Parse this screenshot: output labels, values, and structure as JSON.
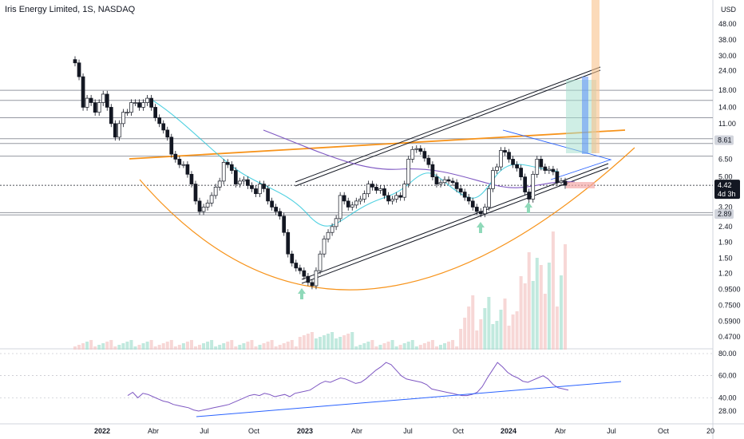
{
  "header": {
    "title": "Iris Energy Limited, 1S, NASDAQ",
    "currency": "USD"
  },
  "chart_data": {
    "type": "candlestick",
    "title": "Iris Energy Limited, 1S, NASDAQ",
    "price_axis": {
      "scale": "log",
      "range": [
        0.42,
        62
      ],
      "ticks": [
        "48.00",
        "38.00",
        "30.00",
        "24.00",
        "18.00",
        "14.00",
        "11.00",
        "8.61",
        "6.50",
        "5.00",
        "4.42",
        "3.20",
        "2.89",
        "2.40",
        "1.90",
        "1.50",
        "1.20",
        "0.9500",
        "0.7500",
        "0.5900",
        "0.4700"
      ],
      "last_price": "4.42",
      "countdown": "4d 3h",
      "support_level": "2.89",
      "resistance_level": "8.61"
    },
    "date_axis": {
      "ticks": [
        {
          "label": "2022",
          "bold": true
        },
        {
          "label": "Abr",
          "bold": false
        },
        {
          "label": "Jul",
          "bold": false
        },
        {
          "label": "Oct",
          "bold": false
        },
        {
          "label": "2023",
          "bold": true
        },
        {
          "label": "Abr",
          "bold": false
        },
        {
          "label": "Jul",
          "bold": false
        },
        {
          "label": "Oct",
          "bold": false
        },
        {
          "label": "2024",
          "bold": true
        },
        {
          "label": "Abr",
          "bold": false
        },
        {
          "label": "Jul",
          "bold": false
        },
        {
          "label": "Oct",
          "bold": false
        },
        {
          "label": "20",
          "bold": false
        }
      ]
    },
    "indicator_axis": {
      "type": "RSI",
      "ticks": [
        "80.00",
        "60.00",
        "40.00",
        "28.00"
      ],
      "range": [
        25,
        85
      ]
    },
    "close_series": [
      27,
      22,
      14,
      16,
      15,
      13,
      15,
      17,
      14,
      11,
      9,
      11,
      13,
      13,
      15,
      15,
      14,
      15,
      16,
      14,
      12,
      11,
      10,
      9,
      7,
      6.5,
      6,
      6,
      5.2,
      4.5,
      3.5,
      3,
      3.2,
      3.4,
      3.8,
      4.3,
      4.7,
      6.2,
      6,
      5.5,
      4.5,
      4.7,
      4.8,
      4.4,
      4.2,
      3.9,
      4.5,
      4.2,
      3.5,
      3.2,
      3,
      2.8,
      2.2,
      1.6,
      1.4,
      1.3,
      1.25,
      1.15,
      1.05,
      1,
      1.25,
      1.6,
      2,
      2.2,
      2.4,
      2.7,
      3.8,
      3.5,
      3.2,
      3.3,
      3.5,
      3.6,
      3.9,
      4.5,
      4.3,
      4.1,
      4.2,
      3.8,
      3.5,
      3.6,
      3.8,
      3.7,
      4.5,
      6.5,
      7.5,
      7.6,
      7.3,
      6.6,
      6,
      5,
      4.5,
      4.6,
      4.8,
      4.7,
      4.6,
      4.2,
      4,
      3.7,
      3.5,
      3.2,
      3,
      2.9,
      3.2,
      4.2,
      5.5,
      5.8,
      7.4,
      7.2,
      6.5,
      6,
      5.7,
      5,
      4,
      3.6,
      5.2,
      6.5,
      5.8,
      5.5,
      5.6,
      5.4,
      4.6,
      4.7,
      4.42
    ],
    "rsi_series": [
      42,
      45,
      40,
      44,
      43,
      41,
      39,
      37,
      36,
      34,
      33,
      32,
      31,
      29,
      28,
      29,
      30,
      31,
      32,
      33,
      34,
      36,
      38,
      40,
      42,
      43,
      42,
      44,
      43,
      41,
      42,
      43,
      41,
      44,
      45,
      46,
      47,
      50,
      53,
      55,
      54,
      56,
      58,
      57,
      55,
      53,
      54,
      57,
      61,
      65,
      68,
      72,
      70,
      65,
      60,
      57,
      56,
      55,
      54,
      52,
      48,
      47,
      46,
      45,
      44,
      43,
      42,
      42,
      43,
      45,
      50,
      58,
      65,
      72,
      68,
      63,
      60,
      58,
      55,
      54,
      56,
      58,
      60,
      57,
      52,
      49,
      48,
      47
    ]
  }
}
